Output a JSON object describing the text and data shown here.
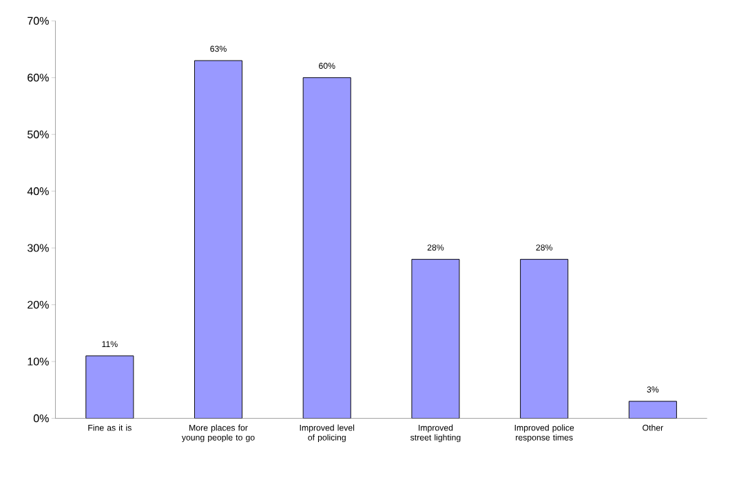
{
  "chart_data": {
    "type": "bar",
    "categories": [
      "Fine as it is",
      "More places for young people to go",
      "Improved level of policing",
      "Improved street lighting",
      "Improved police response times",
      "Other"
    ],
    "values": [
      11,
      63,
      60,
      28,
      28,
      3
    ],
    "value_labels": [
      "11%",
      "63%",
      "60%",
      "28%",
      "28%",
      "3%"
    ],
    "color": "#9999ff",
    "ylim": [
      0,
      70
    ],
    "yticks": [
      {
        "value": 0,
        "label": "0%"
      },
      {
        "value": 10,
        "label": "10%"
      },
      {
        "value": 20,
        "label": "20%"
      },
      {
        "value": 30,
        "label": "30%"
      },
      {
        "value": 40,
        "label": "40%"
      },
      {
        "value": 50,
        "label": "50%"
      },
      {
        "value": 60,
        "label": "60%"
      },
      {
        "value": 70,
        "label": "70%"
      }
    ],
    "grid": false
  }
}
